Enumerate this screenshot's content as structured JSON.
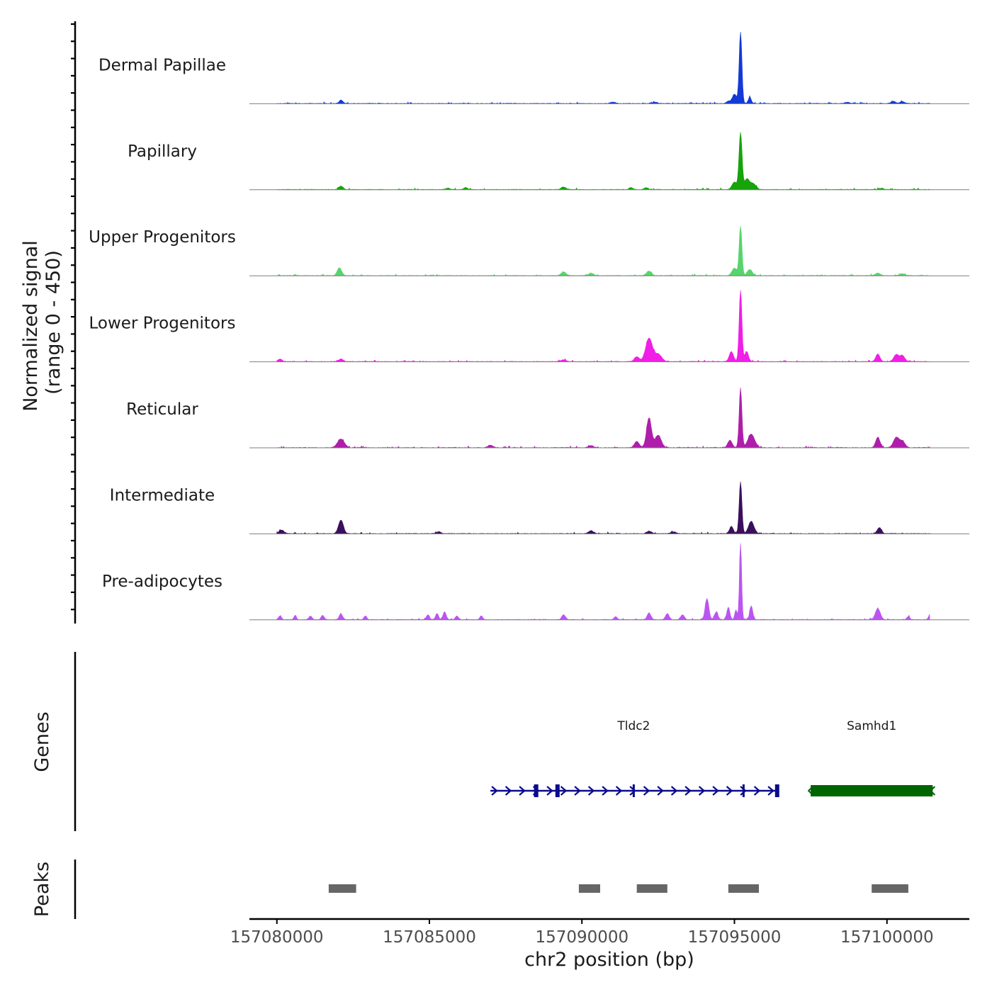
{
  "chart_data": {
    "type": "area",
    "title": "",
    "xlabel": "chr2 position (bp)",
    "ylabel_line1": "Normalized signal",
    "ylabel_line2": "(range 0 - 450)",
    "yrange": [
      0,
      450
    ],
    "xlim": [
      157079100,
      157102700
    ],
    "x_ticks": [
      157080000,
      157085000,
      157090000,
      157095000,
      157100000
    ],
    "x_tick_labels": [
      "157080000",
      "157085000",
      "157090000",
      "157095000",
      "157100000"
    ],
    "signal_start": 157080000,
    "signal_end": 157101400,
    "tracks": [
      {
        "name": "Dermal Papillae",
        "color": "#1339d6",
        "peaks": [
          [
            157082100,
            14,
            60
          ],
          [
            157091000,
            6,
            80
          ],
          [
            157092400,
            6,
            80
          ],
          [
            157094800,
            10,
            60
          ],
          [
            157095000,
            38,
            70
          ],
          [
            157095200,
            290,
            45
          ],
          [
            157095500,
            25,
            50
          ],
          [
            157098700,
            5,
            80
          ],
          [
            157100200,
            10,
            70
          ],
          [
            157100500,
            8,
            70
          ]
        ]
      },
      {
        "name": "Papillary",
        "color": "#16a30b",
        "peaks": [
          [
            157082100,
            14,
            70
          ],
          [
            157085600,
            6,
            70
          ],
          [
            157086200,
            8,
            60
          ],
          [
            157089400,
            10,
            80
          ],
          [
            157091600,
            8,
            60
          ],
          [
            157092100,
            8,
            60
          ],
          [
            157095000,
            30,
            80
          ],
          [
            157095200,
            230,
            50
          ],
          [
            157095400,
            40,
            80
          ],
          [
            157095600,
            25,
            100
          ],
          [
            157099800,
            5,
            80
          ]
        ]
      },
      {
        "name": "Upper Progenitors",
        "color": "#57d46b",
        "peaks": [
          [
            157082050,
            32,
            70
          ],
          [
            157089400,
            15,
            80
          ],
          [
            157090300,
            10,
            80
          ],
          [
            157092200,
            18,
            80
          ],
          [
            157095000,
            30,
            80
          ],
          [
            157095200,
            200,
            45
          ],
          [
            157095500,
            25,
            80
          ],
          [
            157099700,
            10,
            80
          ],
          [
            157100500,
            8,
            80
          ]
        ]
      },
      {
        "name": "Lower Progenitors",
        "color": "#f01ee6",
        "peaks": [
          [
            157080100,
            10,
            70
          ],
          [
            157082100,
            10,
            80
          ],
          [
            157089400,
            8,
            80
          ],
          [
            157091800,
            20,
            80
          ],
          [
            157092200,
            95,
            110
          ],
          [
            157092500,
            30,
            110
          ],
          [
            157094900,
            40,
            70
          ],
          [
            157095200,
            290,
            45
          ],
          [
            157095400,
            40,
            60
          ],
          [
            157099700,
            30,
            70
          ],
          [
            157100300,
            28,
            80
          ],
          [
            157100500,
            25,
            80
          ]
        ]
      },
      {
        "name": "Reticular",
        "color": "#ae1eaa",
        "peaks": [
          [
            157082100,
            35,
            110
          ],
          [
            157087000,
            10,
            80
          ],
          [
            157090300,
            8,
            80
          ],
          [
            157091800,
            25,
            80
          ],
          [
            157092200,
            120,
            80
          ],
          [
            157092500,
            50,
            100
          ],
          [
            157094850,
            30,
            70
          ],
          [
            157095200,
            240,
            45
          ],
          [
            157095550,
            55,
            110
          ],
          [
            157099700,
            42,
            70
          ],
          [
            157100300,
            40,
            90
          ],
          [
            157100500,
            25,
            90
          ]
        ]
      },
      {
        "name": "Intermediate",
        "color": "#3b0f5c",
        "peaks": [
          [
            157080150,
            15,
            80
          ],
          [
            157082100,
            55,
            80
          ],
          [
            157085300,
            8,
            80
          ],
          [
            157090300,
            12,
            80
          ],
          [
            157092200,
            10,
            80
          ],
          [
            157093000,
            8,
            80
          ],
          [
            157094900,
            30,
            60
          ],
          [
            157095200,
            210,
            45
          ],
          [
            157095550,
            50,
            90
          ],
          [
            157099750,
            25,
            70
          ]
        ]
      },
      {
        "name": "Pre-adipocytes",
        "color": "#bb55f0",
        "peaks": [
          [
            157080100,
            15,
            50
          ],
          [
            157080600,
            18,
            40
          ],
          [
            157081100,
            15,
            50
          ],
          [
            157081500,
            18,
            50
          ],
          [
            157082100,
            22,
            60
          ],
          [
            157082900,
            15,
            50
          ],
          [
            157084950,
            20,
            50
          ],
          [
            157085250,
            25,
            50
          ],
          [
            157085500,
            32,
            50
          ],
          [
            157085900,
            15,
            50
          ],
          [
            157086700,
            15,
            50
          ],
          [
            157089400,
            20,
            60
          ],
          [
            157091100,
            12,
            50
          ],
          [
            157092200,
            28,
            60
          ],
          [
            157092800,
            25,
            60
          ],
          [
            157093300,
            20,
            60
          ],
          [
            157094100,
            85,
            60
          ],
          [
            157094400,
            30,
            60
          ],
          [
            157094800,
            50,
            50
          ],
          [
            157095050,
            40,
            40
          ],
          [
            157095200,
            320,
            35
          ],
          [
            157095550,
            55,
            50
          ],
          [
            157099700,
            45,
            80
          ],
          [
            157100700,
            12,
            50
          ],
          [
            157101400,
            20,
            40
          ]
        ]
      }
    ],
    "genes": [
      {
        "name": "Tldc2",
        "color": "#0b0b8c",
        "strand": "+",
        "start": 157087000,
        "end": 157096400,
        "exons": [
          157088500,
          157089200,
          157091700,
          157095300,
          157096400
        ]
      },
      {
        "name": "Samhd1",
        "color": "#006400",
        "strand": "-",
        "start": 157097500,
        "end": 157101500,
        "exons": [
          157099600
        ]
      }
    ],
    "peaks_label": "Peaks",
    "genes_label": "Genes",
    "peaks": [
      [
        157081700,
        157082600
      ],
      [
        157089900,
        157090600
      ],
      [
        157091800,
        157092800
      ],
      [
        157094800,
        157095800
      ],
      [
        157099500,
        157100700
      ]
    ]
  }
}
